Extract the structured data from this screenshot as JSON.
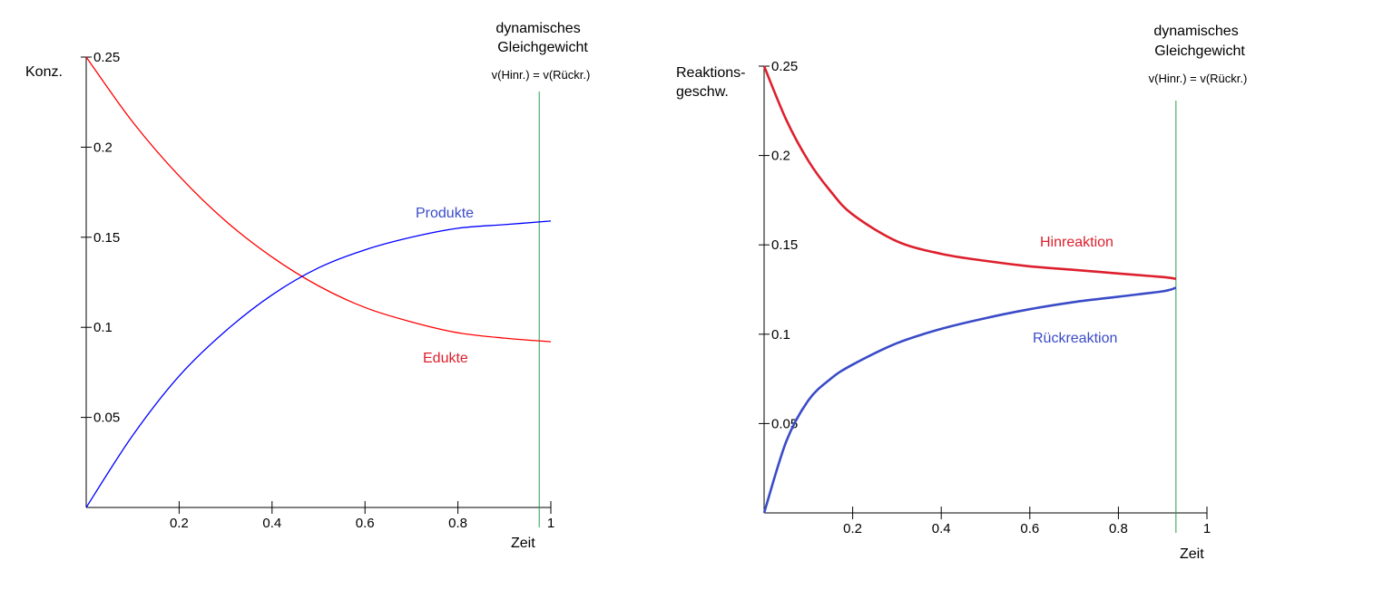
{
  "chart_data": [
    {
      "type": "line",
      "ylabel": "Konz.",
      "xlabel": "Zeit",
      "xlim": [
        0,
        1
      ],
      "ylim": [
        0,
        0.25
      ],
      "x_ticks": [
        "0.2",
        "0.4",
        "0.6",
        "0.8",
        "1"
      ],
      "y_ticks": [
        "0.05",
        "0.1",
        "0.15",
        "0.2",
        "0.25"
      ],
      "grid": false,
      "equilibrium_x": 0.975,
      "equilibrium_label_line1": "dynamisches",
      "equilibrium_label_line2": "Gleichgewicht",
      "equilibrium_formula": "v(Hinr.) = v(Rückr.)",
      "series": [
        {
          "name": "Edukte",
          "color": "#ff0000",
          "x": [
            0,
            0.1,
            0.2,
            0.3,
            0.4,
            0.5,
            0.6,
            0.7,
            0.8,
            0.9,
            1.0
          ],
          "y": [
            0.25,
            0.214,
            0.184,
            0.159,
            0.139,
            0.123,
            0.111,
            0.103,
            0.097,
            0.094,
            0.092
          ]
        },
        {
          "name": "Produkte",
          "color": "#0000ff",
          "x": [
            0,
            0.1,
            0.2,
            0.3,
            0.4,
            0.5,
            0.6,
            0.7,
            0.8,
            0.9,
            1.0
          ],
          "y": [
            0,
            0.04,
            0.073,
            0.098,
            0.118,
            0.133,
            0.143,
            0.15,
            0.155,
            0.157,
            0.159
          ]
        }
      ]
    },
    {
      "type": "line",
      "ylabel_line1": "Reaktions-",
      "ylabel_line2": "geschw.",
      "xlabel": "Zeit",
      "xlim": [
        0,
        1
      ],
      "ylim": [
        0,
        0.25
      ],
      "x_ticks": [
        "0.2",
        "0.4",
        "0.6",
        "0.8",
        "1"
      ],
      "y_ticks": [
        "0.05",
        "0.1",
        "0.15",
        "0.2",
        "0.25"
      ],
      "grid": false,
      "equilibrium_x": 0.93,
      "equilibrium_label_line1": "dynamisches",
      "equilibrium_label_line2": "Gleichgewicht",
      "equilibrium_formula": "v(Hinr.) = v(Rückr.)",
      "series": [
        {
          "name": "Hinreaktion",
          "color": "#dd1f2d",
          "x": [
            0,
            0.05,
            0.1,
            0.15,
            0.2,
            0.3,
            0.4,
            0.5,
            0.6,
            0.7,
            0.8,
            0.9,
            0.93
          ],
          "y": [
            0.25,
            0.22,
            0.197,
            0.18,
            0.167,
            0.152,
            0.145,
            0.141,
            0.138,
            0.136,
            0.134,
            0.132,
            0.131
          ]
        },
        {
          "name": "Rückreaktion",
          "color": "#3a4bc8",
          "x": [
            0,
            0.05,
            0.1,
            0.15,
            0.2,
            0.3,
            0.4,
            0.5,
            0.6,
            0.7,
            0.8,
            0.9,
            0.93
          ],
          "y": [
            0,
            0.04,
            0.063,
            0.075,
            0.083,
            0.095,
            0.103,
            0.109,
            0.114,
            0.118,
            0.121,
            0.124,
            0.126
          ]
        }
      ]
    }
  ]
}
